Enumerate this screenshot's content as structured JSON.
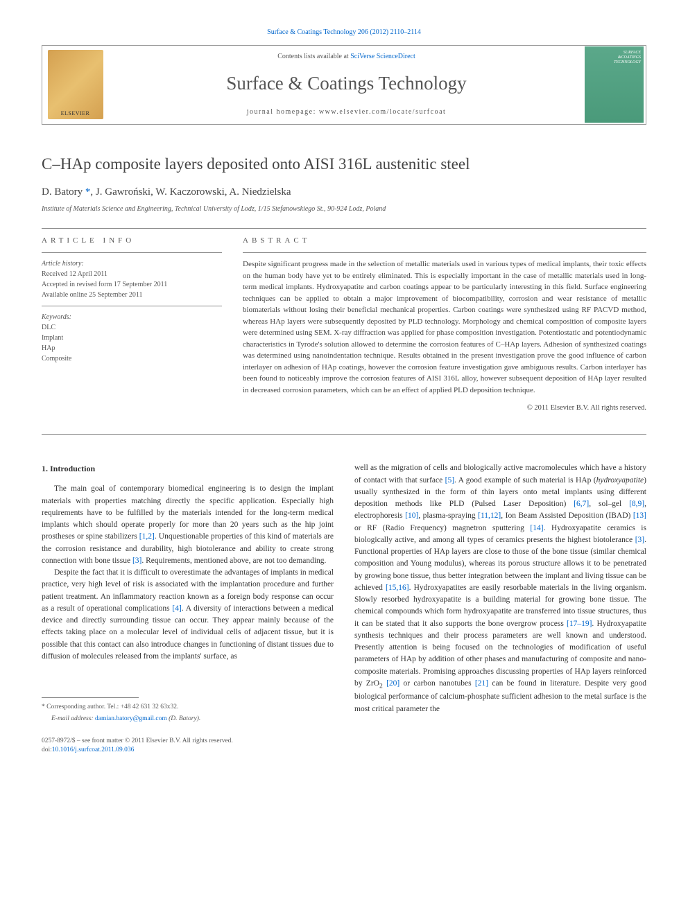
{
  "top_citation": "Surface & Coatings Technology 206 (2012) 2110–2114",
  "header": {
    "contents_prefix": "Contents lists available at ",
    "contents_link": "SciVerse ScienceDirect",
    "journal_title": "Surface & Coatings Technology",
    "homepage": "journal homepage: www.elsevier.com/locate/surfcoat",
    "cover_lines": [
      "SURFACE",
      "&COATINGS",
      "TECHNOLOGY"
    ]
  },
  "paper": {
    "title": "C–HAp composite layers deposited onto AISI 316L austenitic steel",
    "authors_html": "D. Batory ",
    "author2": ", J. Gawroński, W. Kaczorowski, A. Niedzielska",
    "star": "*",
    "affiliation": "Institute of Materials Science and Engineering, Technical University of Lodz, 1/15 Stefanowskiego St., 90-924 Lodz, Poland"
  },
  "article_info": {
    "label": "article info",
    "history_label": "Article history:",
    "received": "Received 12 April 2011",
    "accepted": "Accepted in revised form 17 September 2011",
    "online": "Available online 25 September 2011",
    "keywords_label": "Keywords:",
    "keywords": [
      "DLC",
      "Implant",
      "HAp",
      "Composite"
    ]
  },
  "abstract": {
    "label": "abstract",
    "text": "Despite significant progress made in the selection of metallic materials used in various types of medical implants, their toxic effects on the human body have yet to be entirely eliminated. This is especially important in the case of metallic materials used in long-term medical implants. Hydroxyapatite and carbon coatings appear to be particularly interesting in this field. Surface engineering techniques can be applied to obtain a major improvement of biocompatibility, corrosion and wear resistance of metallic biomaterials without losing their beneficial mechanical properties. Carbon coatings were synthesized using RF PACVD method, whereas HAp layers were subsequently deposited by PLD technology. Morphology and chemical composition of composite layers were determined using SEM. X-ray diffraction was applied for phase composition investigation. Potentiostatic and potentiodynamic characteristics in Tyrode's solution allowed to determine the corrosion features of C–HAp layers. Adhesion of synthesized coatings was determined using nanoindentation technique. Results obtained in the present investigation prove the good influence of carbon interlayer on adhesion of HAp coatings, however the corrosion feature investigation gave ambiguous results. Carbon interlayer has been found to noticeably improve the corrosion features of AISI 316L alloy, however subsequent deposition of HAp layer resulted in decreased corrosion parameters, which can be an effect of applied PLD deposition technique.",
    "copyright": "© 2011 Elsevier B.V. All rights reserved."
  },
  "intro": {
    "heading": "1. Introduction",
    "p1_a": "The main goal of contemporary biomedical engineering is to design the implant materials with properties matching directly the specific application. Especially high requirements have to be fulfilled by the materials intended for the long-term medical implants which should operate properly for more than 20 years such as the hip joint prostheses or spine stabilizers ",
    "r12": "[1,2]",
    "p1_b": ". Unquestionable properties of this kind of materials are the corrosion resistance and durability, high biotolerance and ability to create strong connection with bone tissue ",
    "r3a": "[3]",
    "p1_c": ". Requirements, mentioned above, are not too demanding.",
    "p2_a": "Despite the fact that it is difficult to overestimate the advantages of implants in medical practice, very high level of risk is associated with the implantation procedure and further patient treatment. An inflammatory reaction known as a foreign body response can occur as a result of operational complications ",
    "r4": "[4]",
    "p2_b": ". A diversity of interactions between a medical device and directly surrounding tissue can occur. They appear mainly because of the effects taking place on a molecular level of individual cells of adjacent tissue, but it is possible that this contact can also introduce changes in functioning of distant tissues due to diffusion of molecules released from the implants' surface, as",
    "p3_a": "well as the migration of cells and biologically active macromolecules which have a history of contact with that surface ",
    "r5": "[5]",
    "p3_b": ". A good example of such material is HAp (",
    "hap_italic": "hydroxyapatite",
    "p3_c": ") usually synthesized in the form of thin layers onto metal implants using different deposition methods like PLD (Pulsed Laser Deposition) ",
    "r67": "[6,7]",
    "p3_d": ", sol–gel ",
    "r89": "[8,9]",
    "p3_e": ", electrophoresis ",
    "r10": "[10]",
    "p3_f": ", plasma-spraying ",
    "r1112": "[11,12]",
    "p3_g": ", Ion Beam Assisted Deposition (IBAD) ",
    "r13": "[13]",
    "p3_h": " or RF (Radio Frequency) magnetron sputtering ",
    "r14": "[14]",
    "p3_i": ". Hydroxyapatite ceramics is biologically active, and among all types of ceramics presents the highest biotolerance ",
    "r3b": "[3]",
    "p3_j": ". Functional properties of HAp layers are close to those of the bone tissue (similar chemical composition and Young modulus), whereas its porous structure allows it to be penetrated by growing bone tissue, thus better integration between the implant and living tissue can be achieved ",
    "r1516": "[15,16]",
    "p3_k": ". Hydroxyapatites are easily resorbable materials in the living organism. Slowly resorbed hydroxyapatite is a building material for growing bone tissue. The chemical compounds which form hydroxyapatite are transferred into tissue structures, thus it can be stated that it also supports the bone overgrow process ",
    "r1719": "[17–19]",
    "p3_l": ". Hydroxyapatite synthesis techniques and their process parameters are well known and understood. Presently attention is being focused on the technologies of modification of useful parameters of HAp by addition of other phases and manufacturing of composite and nano-composite materials. Promising approaches discussing properties of HAp layers reinforced by ZrO",
    "sub2": "2",
    "p3_m": " ",
    "r20": "[20]",
    "p3_n": " or carbon nanotubes ",
    "r21": "[21]",
    "p3_o": " can be found in literature. Despite very good biological performance of calcium-phosphate sufficient adhesion to the metal surface is the most critical parameter the"
  },
  "footer": {
    "corr": "* Corresponding author. Tel.: +48 42 631 32 63x32.",
    "email_label": "E-mail address: ",
    "email": "damian.batory@gmail.com",
    "email_suffix": " (D. Batory).",
    "issn": "0257-8972/$ – see front matter © 2011 Elsevier B.V. All rights reserved.",
    "doi_prefix": "doi:",
    "doi": "10.1016/j.surfcoat.2011.09.036"
  },
  "colors": {
    "link": "#0066cc",
    "text": "#333333",
    "muted": "#555555",
    "border": "#888888",
    "elsevier_bg": "#d4a050",
    "cover_bg": "#5ba88a"
  }
}
